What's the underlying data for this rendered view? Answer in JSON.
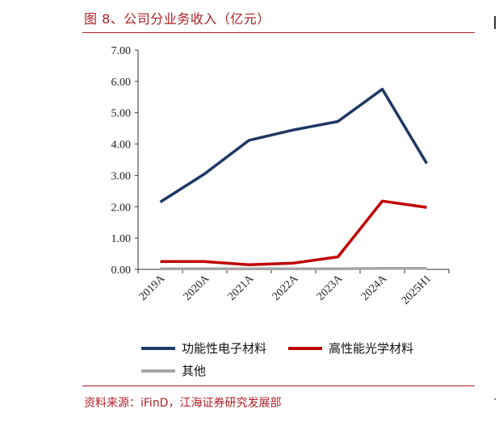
{
  "header": {
    "title": "图 8、公司分业务收入（亿元）"
  },
  "footer": {
    "source": "资料来源：iFinD，江海证券研究发展部"
  },
  "chart_data": {
    "type": "line",
    "categories": [
      "2019A",
      "2020A",
      "2021A",
      "2022A",
      "2023A",
      "2024A",
      "2025H1"
    ],
    "series": [
      {
        "name": "功能性电子材料",
        "color": "#1f3864",
        "values": [
          2.15,
          3.05,
          4.12,
          4.45,
          4.72,
          5.75,
          3.38
        ]
      },
      {
        "name": "高性能光学材料",
        "color": "#c00000",
        "values": [
          0.25,
          0.25,
          0.15,
          0.2,
          0.4,
          2.18,
          1.98
        ]
      },
      {
        "name": "其他",
        "color": "#a6a6a6",
        "values": [
          0.02,
          0.02,
          0.02,
          0.02,
          0.02,
          0.03,
          0.03
        ]
      }
    ],
    "yticks": [
      "0.00",
      "1.00",
      "2.00",
      "3.00",
      "4.00",
      "5.00",
      "6.00",
      "7.00"
    ],
    "ylim": [
      0,
      7
    ],
    "grid": false,
    "legend_position": "bottom"
  }
}
